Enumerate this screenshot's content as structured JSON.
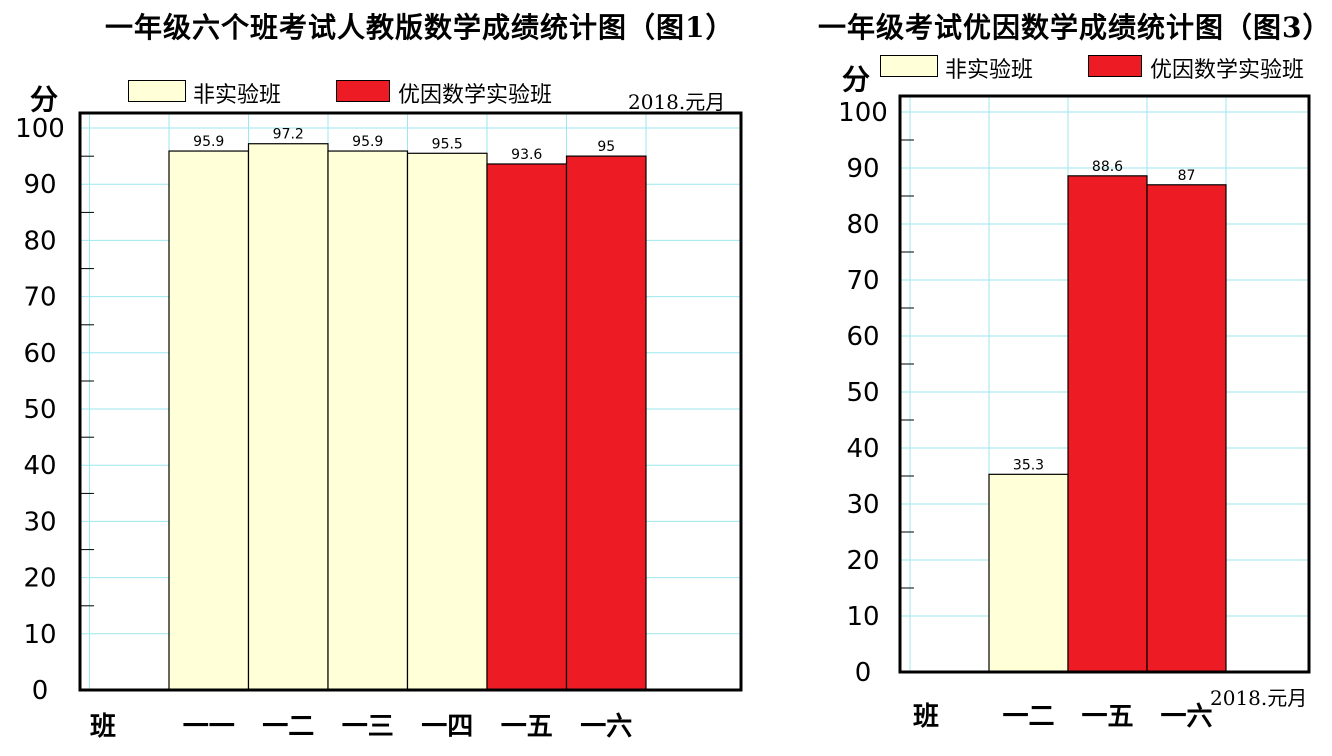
{
  "chart_data": [
    {
      "type": "bar",
      "title": "一年级六个班考试人教版数学成绩统计图（图1）",
      "ylabel": "分",
      "xlabel": "班",
      "date": "2018.元月",
      "categories": [
        "一一",
        "一二",
        "一三",
        "一四",
        "一五",
        "一六"
      ],
      "values": [
        95.9,
        97.2,
        95.9,
        95.5,
        93.6,
        95
      ],
      "value_labels": [
        "95.9",
        "97.2",
        "95.9",
        "95.5",
        "93.6",
        "95"
      ],
      "groups": [
        "非实验班",
        "非实验班",
        "非实验班",
        "非实验班",
        "优因数学实验班",
        "优因数学实验班"
      ],
      "legend": [
        {
          "name": "非实验班",
          "color": "#FFFFD8"
        },
        {
          "name": "优因数学实验班",
          "color": "#ED1C24"
        }
      ],
      "yticks": [
        "0",
        "10",
        "20",
        "30",
        "40",
        "50",
        "60",
        "70",
        "80",
        "90",
        "100"
      ],
      "ylim": [
        0,
        100
      ],
      "grid": true,
      "legend_position": "top"
    },
    {
      "type": "bar",
      "title": "一年级考试优因数学成绩统计图（图3）",
      "ylabel": "分",
      "xlabel": "班",
      "date": "2018.元月",
      "categories": [
        "一二",
        "一五",
        "一六"
      ],
      "values": [
        35.3,
        88.6,
        87
      ],
      "value_labels": [
        "35.3",
        "88.6",
        "87"
      ],
      "groups": [
        "非实验班",
        "优因数学实验班",
        "优因数学实验班"
      ],
      "legend": [
        {
          "name": "非实验班",
          "color": "#FFFFD8"
        },
        {
          "name": "优因数学实验班",
          "color": "#ED1C24"
        }
      ],
      "yticks": [
        "0",
        "10",
        "20",
        "30",
        "40",
        "50",
        "60",
        "70",
        "80",
        "90",
        "100"
      ],
      "ylim": [
        0,
        100
      ],
      "grid": true,
      "legend_position": "top"
    }
  ]
}
